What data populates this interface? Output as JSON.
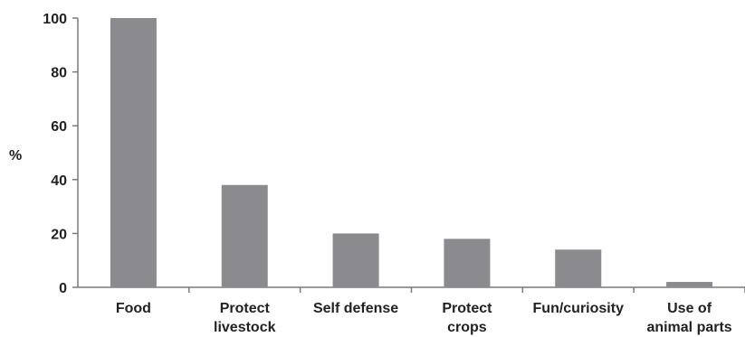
{
  "chart_data": {
    "type": "bar",
    "categories": [
      [
        "Food"
      ],
      [
        "Protect",
        "livestock"
      ],
      [
        "Self defense"
      ],
      [
        "Protect",
        "crops"
      ],
      [
        "Fun/curiosity"
      ],
      [
        "Use of",
        "animal parts"
      ]
    ],
    "values": [
      100,
      38,
      20,
      18,
      14,
      2
    ],
    "xlabel": "",
    "ylabel": "%",
    "ylim": [
      0,
      100
    ],
    "yticks": [
      0,
      20,
      40,
      60,
      80,
      100
    ],
    "grid": false,
    "bar_color": "#8a8a8f"
  }
}
